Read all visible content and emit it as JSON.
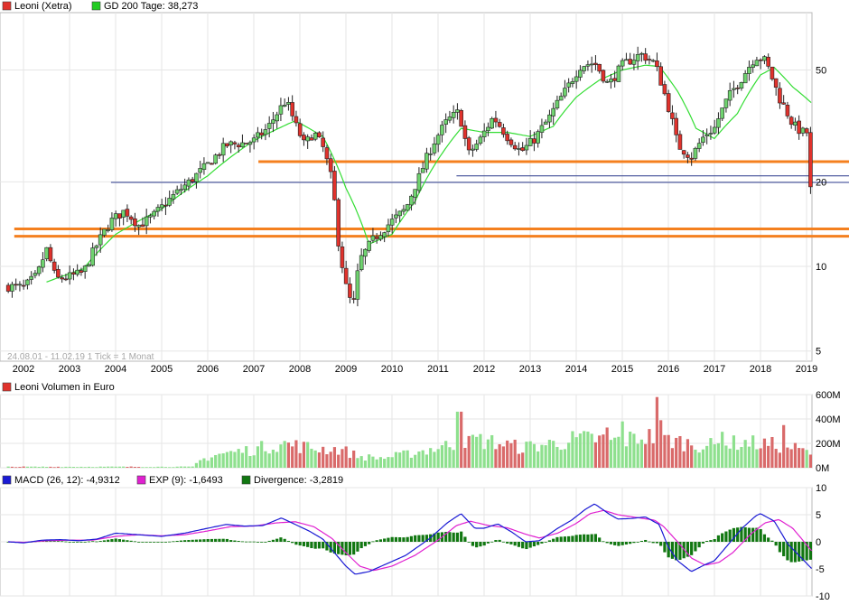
{
  "chart_data": [
    {
      "type": "candlestick",
      "title": "Leoni (Xetra)",
      "legend": [
        {
          "label": "Leoni (Xetra)",
          "color": "#e0322c"
        },
        {
          "label": "GD 200 Tage: 38,273",
          "color": "#22cc22"
        }
      ],
      "range_note": "24.08.01 - 11.02.19   1 Tick = 1 Monat",
      "scale": "log",
      "ylim": [
        4.6,
        80
      ],
      "y_ticks": [
        5,
        10,
        20,
        50
      ],
      "y_tick_labels": [
        "5",
        "10",
        "20",
        "50"
      ],
      "x_tick_labels": [
        "2002",
        "2003",
        "2004",
        "2005",
        "2006",
        "2007",
        "2008",
        "2009",
        "2010",
        "2011",
        "2012",
        "2013",
        "2014",
        "2015",
        "2016",
        "2017",
        "2018",
        "2019"
      ],
      "x_range": [
        2001.6,
        2019.1
      ],
      "close_anchors": [
        [
          2001.67,
          8.5
        ],
        [
          2002.0,
          8.4
        ],
        [
          2002.3,
          9.3
        ],
        [
          2002.5,
          11.5
        ],
        [
          2002.7,
          9.0
        ],
        [
          2003.0,
          9.2
        ],
        [
          2003.3,
          9.5
        ],
        [
          2003.6,
          12.0
        ],
        [
          2003.9,
          14.5
        ],
        [
          2004.2,
          15.8
        ],
        [
          2004.5,
          14.0
        ],
        [
          2004.8,
          15.0
        ],
        [
          2005.2,
          17.5
        ],
        [
          2005.6,
          20.0
        ],
        [
          2006.0,
          23.0
        ],
        [
          2006.4,
          27.0
        ],
        [
          2006.8,
          27.5
        ],
        [
          2007.0,
          28.0
        ],
        [
          2007.3,
          31.0
        ],
        [
          2007.5,
          35.0
        ],
        [
          2007.7,
          39.0
        ],
        [
          2007.9,
          32.0
        ],
        [
          2008.1,
          27.0
        ],
        [
          2008.3,
          30.0
        ],
        [
          2008.5,
          26.5
        ],
        [
          2008.7,
          20.0
        ],
        [
          2008.85,
          11.5
        ],
        [
          2009.0,
          8.5
        ],
        [
          2009.15,
          7.0
        ],
        [
          2009.3,
          10.5
        ],
        [
          2009.6,
          12.5
        ],
        [
          2010.0,
          14.5
        ],
        [
          2010.3,
          16.0
        ],
        [
          2010.6,
          21.0
        ],
        [
          2010.9,
          27.5
        ],
        [
          2011.2,
          33.0
        ],
        [
          2011.45,
          35.5
        ],
        [
          2011.65,
          25.0
        ],
        [
          2011.9,
          28.0
        ],
        [
          2012.2,
          34.0
        ],
        [
          2012.5,
          29.0
        ],
        [
          2012.8,
          25.5
        ],
        [
          2013.1,
          28.5
        ],
        [
          2013.4,
          33.5
        ],
        [
          2013.8,
          43.0
        ],
        [
          2014.1,
          52.0
        ],
        [
          2014.4,
          53.0
        ],
        [
          2014.7,
          44.0
        ],
        [
          2015.0,
          52.0
        ],
        [
          2015.4,
          57.0
        ],
        [
          2015.7,
          53.0
        ],
        [
          2015.9,
          42.0
        ],
        [
          2016.2,
          27.0
        ],
        [
          2016.5,
          24.5
        ],
        [
          2016.8,
          29.5
        ],
        [
          2017.0,
          31.0
        ],
        [
          2017.3,
          40.0
        ],
        [
          2017.6,
          47.0
        ],
        [
          2017.9,
          56.0
        ],
        [
          2018.1,
          54.0
        ],
        [
          2018.4,
          40.0
        ],
        [
          2018.7,
          32.0
        ],
        [
          2018.9,
          30.0
        ],
        [
          2019.03,
          30.0
        ],
        [
          2019.11,
          19.2
        ]
      ],
      "ma200_anchors": [
        [
          2002.5,
          8.8
        ],
        [
          2003.3,
          9.8
        ],
        [
          2004.0,
          13.0
        ],
        [
          2005.0,
          16.0
        ],
        [
          2006.0,
          21.0
        ],
        [
          2007.0,
          28.0
        ],
        [
          2007.9,
          33.0
        ],
        [
          2008.5,
          29.0
        ],
        [
          2009.0,
          19.0
        ],
        [
          2009.5,
          12.0
        ],
        [
          2010.0,
          13.0
        ],
        [
          2010.5,
          17.0
        ],
        [
          2011.0,
          24.0
        ],
        [
          2011.5,
          31.0
        ],
        [
          2012.0,
          30.0
        ],
        [
          2012.5,
          30.0
        ],
        [
          2013.0,
          29.0
        ],
        [
          2013.5,
          31.5
        ],
        [
          2014.0,
          40.0
        ],
        [
          2014.5,
          46.0
        ],
        [
          2015.0,
          50.0
        ],
        [
          2015.5,
          52.0
        ],
        [
          2015.8,
          51.5
        ],
        [
          2016.2,
          42.0
        ],
        [
          2016.6,
          31.0
        ],
        [
          2017.0,
          28.5
        ],
        [
          2017.5,
          35.0
        ],
        [
          2018.0,
          48.0
        ],
        [
          2018.3,
          51.0
        ],
        [
          2018.7,
          43.5
        ],
        [
          2019.1,
          38.3
        ]
      ],
      "horizontal_lines": [
        {
          "level": 23.6,
          "from": 2007.1,
          "color": "#f4801f"
        },
        {
          "level": 13.6,
          "from": 2001.8,
          "color": "#f4801f"
        },
        {
          "level": 12.8,
          "from": 2001.8,
          "color": "#f4801f"
        },
        {
          "level": 21.0,
          "from": 2011.4,
          "color": "#2b3a8c"
        },
        {
          "level": 19.9,
          "from": 2003.9,
          "color": "#2b3a8c"
        }
      ]
    },
    {
      "type": "bar",
      "title": "Leoni Volumen in Euro",
      "legend": [
        {
          "label": "Leoni Volumen in Euro",
          "color": "#e0322c"
        }
      ],
      "ylim": [
        0,
        600
      ],
      "y_ticks": [
        0,
        200,
        400,
        600
      ],
      "y_tick_labels": [
        "0M",
        "200M",
        "400M",
        "600M"
      ],
      "unit": "Mio. EUR",
      "volume_anchors": [
        [
          2001.67,
          8
        ],
        [
          2002.5,
          8
        ],
        [
          2005.7,
          8
        ],
        [
          2005.8,
          55
        ],
        [
          2006.2,
          110
        ],
        [
          2007.0,
          150
        ],
        [
          2007.6,
          200
        ],
        [
          2008.3,
          160
        ],
        [
          2008.9,
          150
        ],
        [
          2009.3,
          90
        ],
        [
          2009.8,
          80
        ],
        [
          2010.3,
          110
        ],
        [
          2010.8,
          150
        ],
        [
          2011.2,
          180
        ],
        [
          2011.6,
          240
        ],
        [
          2012.2,
          210
        ],
        [
          2012.8,
          165
        ],
        [
          2013.5,
          200
        ],
        [
          2014.3,
          240
        ],
        [
          2015.0,
          220
        ],
        [
          2015.5,
          260
        ],
        [
          2016.0,
          230
        ],
        [
          2016.6,
          190
        ],
        [
          2017.0,
          180
        ],
        [
          2017.6,
          210
        ],
        [
          2018.2,
          190
        ],
        [
          2018.6,
          175
        ],
        [
          2019.1,
          120
        ]
      ],
      "volume_spikes": [
        [
          2011.46,
          460
        ],
        [
          2011.7,
          260
        ],
        [
          2015.72,
          580
        ],
        [
          2015.85,
          390
        ],
        [
          2018.54,
          350
        ],
        [
          2014.67,
          330
        ],
        [
          2015.0,
          380
        ],
        [
          2013.9,
          300
        ],
        [
          2017.2,
          295
        ]
      ]
    },
    {
      "type": "line",
      "title": "MACD",
      "legend": [
        {
          "label": "MACD (26, 12): -4,9312",
          "color": "#1a1ad4"
        },
        {
          "label": "EXP (9): -1,6493",
          "color": "#e020d0"
        },
        {
          "label": "Divergence: -3,2819",
          "color": "#117711"
        }
      ],
      "ylim": [
        -10,
        10
      ],
      "y_ticks": [
        -10,
        -5,
        0,
        5,
        10
      ],
      "y_tick_labels": [
        "-10",
        "-5",
        "0",
        "5",
        "10"
      ],
      "macd_anchors": [
        [
          2001.67,
          0
        ],
        [
          2002.0,
          -0.2
        ],
        [
          2002.4,
          0.3
        ],
        [
          2002.8,
          0.4
        ],
        [
          2003.2,
          0.2
        ],
        [
          2003.6,
          0.5
        ],
        [
          2004.0,
          1.6
        ],
        [
          2004.5,
          1.3
        ],
        [
          2005.0,
          1.0
        ],
        [
          2005.5,
          1.6
        ],
        [
          2006.0,
          2.5
        ],
        [
          2006.4,
          3.2
        ],
        [
          2006.8,
          2.9
        ],
        [
          2007.2,
          3.0
        ],
        [
          2007.6,
          4.4
        ],
        [
          2007.9,
          3.2
        ],
        [
          2008.2,
          2.0
        ],
        [
          2008.5,
          0.5
        ],
        [
          2008.75,
          -2.0
        ],
        [
          2009.0,
          -4.5
        ],
        [
          2009.2,
          -6.0
        ],
        [
          2009.5,
          -5.5
        ],
        [
          2009.9,
          -4.0
        ],
        [
          2010.3,
          -2.5
        ],
        [
          2010.8,
          0.5
        ],
        [
          2011.2,
          3.5
        ],
        [
          2011.5,
          5.2
        ],
        [
          2011.8,
          2.5
        ],
        [
          2012.0,
          2.5
        ],
        [
          2012.3,
          3.3
        ],
        [
          2012.6,
          1.8
        ],
        [
          2012.9,
          0.0
        ],
        [
          2013.2,
          0.2
        ],
        [
          2013.6,
          2.5
        ],
        [
          2013.9,
          4.0
        ],
        [
          2014.2,
          6.0
        ],
        [
          2014.4,
          7.0
        ],
        [
          2014.7,
          5.2
        ],
        [
          2014.9,
          4.2
        ],
        [
          2015.2,
          4.3
        ],
        [
          2015.5,
          4.6
        ],
        [
          2015.8,
          3.2
        ],
        [
          2016.0,
          -1.0
        ],
        [
          2016.2,
          -3.5
        ],
        [
          2016.5,
          -5.5
        ],
        [
          2016.8,
          -4.2
        ],
        [
          2017.0,
          -3.5
        ],
        [
          2017.3,
          -0.5
        ],
        [
          2017.6,
          2.5
        ],
        [
          2017.9,
          4.8
        ],
        [
          2018.0,
          5.2
        ],
        [
          2018.3,
          3.8
        ],
        [
          2018.6,
          -0.5
        ],
        [
          2018.8,
          -2.2
        ],
        [
          2019.11,
          -4.93
        ]
      ],
      "signal_anchors": [
        [
          2001.67,
          0
        ],
        [
          2002.0,
          -0.1
        ],
        [
          2002.5,
          0.2
        ],
        [
          2003.0,
          0.3
        ],
        [
          2003.5,
          0.3
        ],
        [
          2004.0,
          1.0
        ],
        [
          2004.5,
          1.3
        ],
        [
          2005.0,
          1.1
        ],
        [
          2005.5,
          1.3
        ],
        [
          2006.0,
          2.0
        ],
        [
          2006.5,
          2.8
        ],
        [
          2007.0,
          2.9
        ],
        [
          2007.5,
          3.5
        ],
        [
          2007.9,
          3.7
        ],
        [
          2008.3,
          2.8
        ],
        [
          2008.7,
          0.6
        ],
        [
          2009.0,
          -2.0
        ],
        [
          2009.3,
          -4.5
        ],
        [
          2009.6,
          -5.3
        ],
        [
          2010.0,
          -4.5
        ],
        [
          2010.5,
          -2.5
        ],
        [
          2011.0,
          0.3
        ],
        [
          2011.4,
          3.0
        ],
        [
          2011.7,
          3.8
        ],
        [
          2012.1,
          3.0
        ],
        [
          2012.5,
          2.6
        ],
        [
          2012.9,
          1.4
        ],
        [
          2013.2,
          0.7
        ],
        [
          2013.6,
          1.6
        ],
        [
          2014.0,
          3.4
        ],
        [
          2014.3,
          5.2
        ],
        [
          2014.6,
          5.8
        ],
        [
          2014.9,
          5.0
        ],
        [
          2015.3,
          4.5
        ],
        [
          2015.7,
          4.0
        ],
        [
          2015.9,
          2.8
        ],
        [
          2016.2,
          0.0
        ],
        [
          2016.5,
          -3.0
        ],
        [
          2016.8,
          -4.3
        ],
        [
          2017.1,
          -3.8
        ],
        [
          2017.4,
          -2.0
        ],
        [
          2017.8,
          1.5
        ],
        [
          2018.1,
          3.5
        ],
        [
          2018.4,
          4.1
        ],
        [
          2018.7,
          2.5
        ],
        [
          2019.11,
          -1.65
        ]
      ]
    }
  ]
}
